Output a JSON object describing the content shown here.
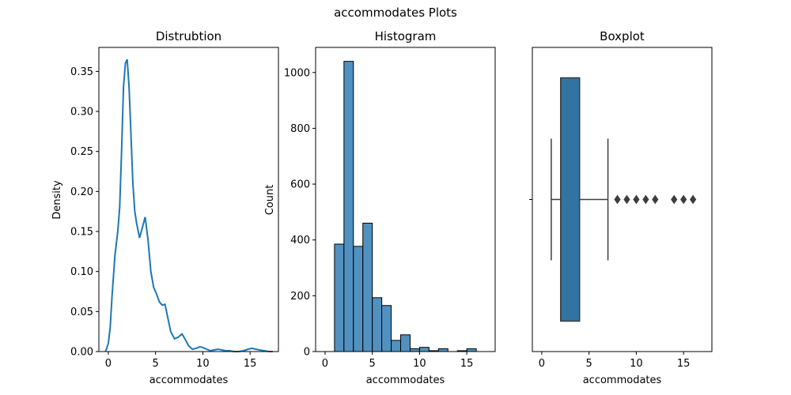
{
  "suptitle": "accommodates Plots",
  "colors": {
    "line": "#1f77b4",
    "bar_fill": "#5191c1",
    "bar_edge": "#000000",
    "box_fill": "#3274a1",
    "box_edge": "#3d3d3d"
  },
  "chart_data": [
    {
      "type": "line",
      "title": "Distrubtion",
      "xlabel": "accommodates",
      "ylabel": "Density",
      "xlim": [
        -1,
        18
      ],
      "ylim": [
        0,
        0.38
      ],
      "xticks": [
        0,
        5,
        10,
        15
      ],
      "yticks": [
        0.0,
        0.05,
        0.1,
        0.15,
        0.2,
        0.25,
        0.3,
        0.35
      ],
      "ytick_labels": [
        "0.00",
        "0.05",
        "0.10",
        "0.15",
        "0.20",
        "0.25",
        "0.30",
        "0.35"
      ],
      "series": [
        {
          "x": [
            -0.3,
            0.0,
            0.2,
            0.4,
            0.7,
            1.0,
            1.2,
            1.4,
            1.6,
            1.8,
            2.0,
            2.2,
            2.4,
            2.6,
            2.8,
            3.0,
            3.3,
            3.6,
            3.9,
            4.2,
            4.5,
            4.8,
            5.1,
            5.4,
            5.7,
            6.0,
            6.3,
            6.6,
            7.0,
            7.4,
            7.8,
            8.1,
            8.5,
            8.9,
            9.3,
            9.7,
            10.0,
            10.4,
            10.8,
            11.2,
            11.6,
            12.0,
            12.4,
            12.8,
            13.3,
            13.8,
            14.3,
            14.8,
            15.2,
            15.6,
            16.0,
            16.5,
            17.0,
            17.4
          ],
          "y": [
            0.0,
            0.01,
            0.03,
            0.07,
            0.12,
            0.15,
            0.18,
            0.25,
            0.33,
            0.36,
            0.365,
            0.33,
            0.27,
            0.21,
            0.175,
            0.16,
            0.142,
            0.155,
            0.168,
            0.14,
            0.1,
            0.08,
            0.072,
            0.062,
            0.058,
            0.059,
            0.042,
            0.025,
            0.016,
            0.018,
            0.022,
            0.016,
            0.007,
            0.003,
            0.004,
            0.006,
            0.005,
            0.003,
            0.001,
            0.002,
            0.003,
            0.002,
            0.001,
            0.001,
            0.0,
            0.0,
            0.001,
            0.003,
            0.004,
            0.003,
            0.002,
            0.001,
            0.0,
            0.0
          ]
        }
      ]
    },
    {
      "type": "bar",
      "title": "Histogram",
      "xlabel": "accommodates",
      "ylabel": "Count",
      "xlim": [
        -1,
        18
      ],
      "ylim": [
        0,
        1090
      ],
      "xticks": [
        0,
        5,
        10,
        15
      ],
      "yticks": [
        0,
        200,
        400,
        600,
        800,
        1000
      ],
      "bin_edges": [
        1,
        2,
        3,
        4,
        5,
        6,
        7,
        8,
        9,
        10,
        11,
        12,
        13,
        14,
        15,
        16,
        17
      ],
      "values": [
        385,
        1040,
        377,
        460,
        193,
        165,
        40,
        60,
        10,
        15,
        3,
        10,
        0,
        3,
        10,
        0
      ]
    },
    {
      "type": "box",
      "title": "Boxplot",
      "xlabel": "accommodates",
      "xlim": [
        -1,
        18
      ],
      "xticks": [
        0,
        5,
        10,
        15
      ],
      "whisker_low": 1,
      "q1": 2,
      "median": 2,
      "q3": 4,
      "whisker_high": 7,
      "outliers": [
        8,
        9,
        10,
        11,
        12,
        14,
        15,
        16
      ]
    }
  ]
}
